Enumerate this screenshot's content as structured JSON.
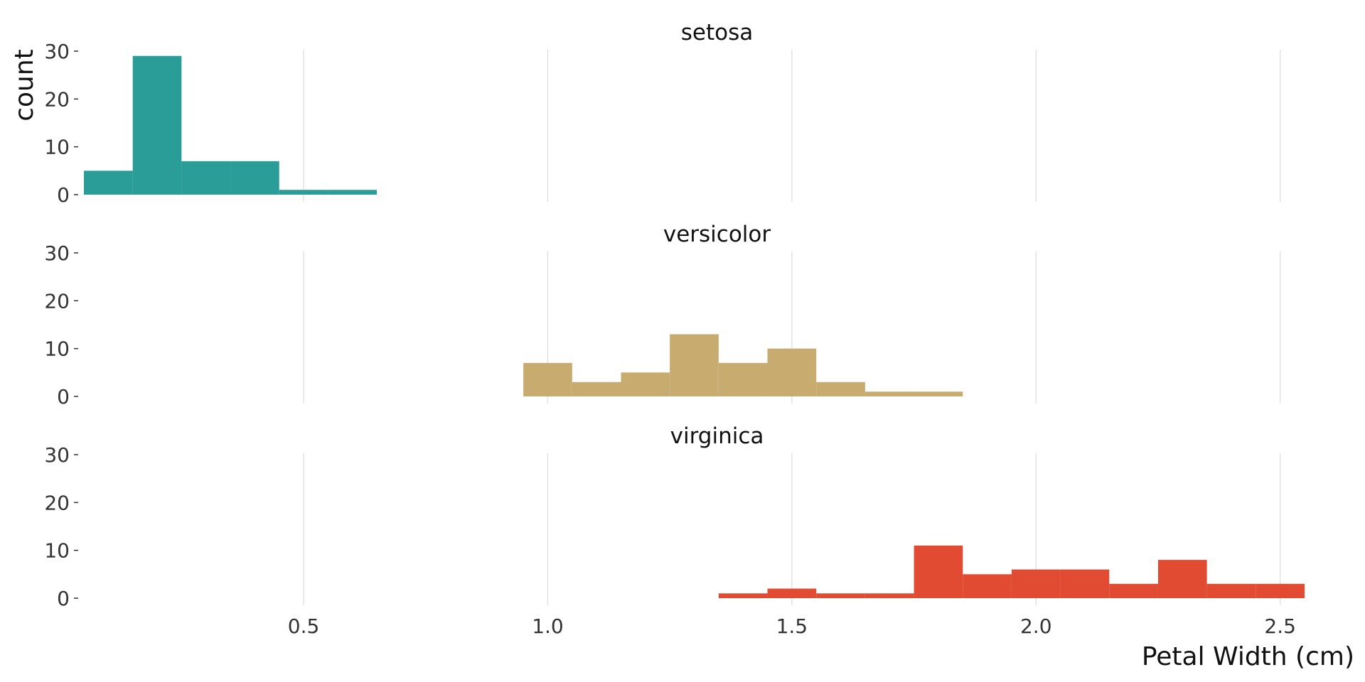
{
  "chart_data": {
    "type": "bar",
    "layout": "facet-histogram",
    "xlabel": "Petal Width (cm)",
    "ylabel": "count",
    "xlim": [
      0.05,
      2.55
    ],
    "ylim": [
      0,
      30
    ],
    "x_ticks": [
      0.5,
      1.0,
      1.5,
      2.0,
      2.5
    ],
    "x_tick_labels": [
      "0.5",
      "1.0",
      "1.5",
      "2.0",
      "2.5"
    ],
    "y_ticks": [
      0,
      10,
      20,
      30
    ],
    "y_tick_labels": [
      "0",
      "10",
      "20",
      "30"
    ],
    "bin_width": 0.1,
    "grid": "vertical-major",
    "legend": "none",
    "series": [
      {
        "name": "setosa",
        "color": "#2a9d98",
        "bins": [
          {
            "x0": 0.05,
            "x1": 0.15,
            "count": 5
          },
          {
            "x0": 0.15,
            "x1": 0.25,
            "count": 29
          },
          {
            "x0": 0.25,
            "x1": 0.35,
            "count": 7
          },
          {
            "x0": 0.35,
            "x1": 0.45,
            "count": 7
          },
          {
            "x0": 0.45,
            "x1": 0.55,
            "count": 1
          },
          {
            "x0": 0.55,
            "x1": 0.65,
            "count": 1
          }
        ]
      },
      {
        "name": "versicolor",
        "color": "#c8ab6e",
        "bins": [
          {
            "x0": 0.95,
            "x1": 1.05,
            "count": 7
          },
          {
            "x0": 1.05,
            "x1": 1.15,
            "count": 3
          },
          {
            "x0": 1.15,
            "x1": 1.25,
            "count": 5
          },
          {
            "x0": 1.25,
            "x1": 1.35,
            "count": 13
          },
          {
            "x0": 1.35,
            "x1": 1.45,
            "count": 7
          },
          {
            "x0": 1.45,
            "x1": 1.55,
            "count": 10
          },
          {
            "x0": 1.55,
            "x1": 1.65,
            "count": 3
          },
          {
            "x0": 1.65,
            "x1": 1.75,
            "count": 1
          },
          {
            "x0": 1.75,
            "x1": 1.85,
            "count": 1
          }
        ]
      },
      {
        "name": "virginica",
        "color": "#e04b31",
        "bins": [
          {
            "x0": 1.35,
            "x1": 1.45,
            "count": 1
          },
          {
            "x0": 1.45,
            "x1": 1.55,
            "count": 2
          },
          {
            "x0": 1.55,
            "x1": 1.65,
            "count": 1
          },
          {
            "x0": 1.65,
            "x1": 1.75,
            "count": 1
          },
          {
            "x0": 1.75,
            "x1": 1.85,
            "count": 11
          },
          {
            "x0": 1.85,
            "x1": 1.95,
            "count": 5
          },
          {
            "x0": 1.95,
            "x1": 2.05,
            "count": 6
          },
          {
            "x0": 2.05,
            "x1": 2.15,
            "count": 6
          },
          {
            "x0": 2.15,
            "x1": 2.25,
            "count": 3
          },
          {
            "x0": 2.25,
            "x1": 2.35,
            "count": 8
          },
          {
            "x0": 2.35,
            "x1": 2.45,
            "count": 3
          },
          {
            "x0": 2.45,
            "x1": 2.55,
            "count": 3
          }
        ]
      }
    ]
  }
}
